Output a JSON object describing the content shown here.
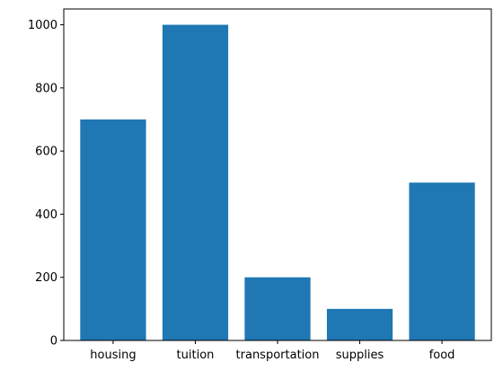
{
  "chart_data": {
    "type": "bar",
    "categories": [
      "housing",
      "tuition",
      "transportation",
      "supplies",
      "food"
    ],
    "values": [
      700,
      1000,
      200,
      100,
      500
    ],
    "title": "",
    "xlabel": "",
    "ylabel": "",
    "ylim": [
      0,
      1050
    ],
    "yticks": [
      0,
      200,
      400,
      600,
      800,
      1000
    ],
    "grid": false,
    "colors": {
      "bar": "#1f77b4",
      "axis": "#000000",
      "background": "#ffffff"
    }
  }
}
